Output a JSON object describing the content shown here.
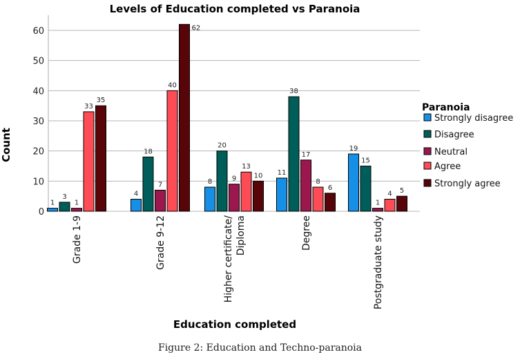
{
  "chart_data": {
    "type": "bar",
    "title": "Levels of Education completed vs Paranoia",
    "xlabel": "Education completed",
    "ylabel": "Count",
    "ylim": [
      0,
      65
    ],
    "yticks": [
      0,
      10,
      20,
      30,
      40,
      50,
      60
    ],
    "grid": true,
    "legend_title": "Paranoia",
    "legend_position": "right",
    "categories": [
      [
        "Grade 1-9"
      ],
      [
        "Grade 9-12"
      ],
      [
        "Higher certificate/",
        "Diploma"
      ],
      [
        "Degree"
      ],
      [
        "Postgraduate study"
      ]
    ],
    "series": [
      {
        "name": "Strongly disagree",
        "color": "#1590e6",
        "values": [
          1,
          4,
          8,
          11,
          19
        ]
      },
      {
        "name": "Disagree",
        "color": "#005e5a",
        "values": [
          3,
          18,
          20,
          38,
          15
        ]
      },
      {
        "name": "Neutral",
        "color": "#9c174d",
        "values": [
          1,
          7,
          9,
          17,
          1
        ]
      },
      {
        "name": "Agree",
        "color": "#fd4c56",
        "values": [
          33,
          40,
          13,
          8,
          4
        ]
      },
      {
        "name": "Strongly agree",
        "color": "#570509",
        "values": [
          35,
          62,
          10,
          6,
          5
        ]
      }
    ]
  },
  "caption": "Figure 2: Education and Techno-paranoia"
}
